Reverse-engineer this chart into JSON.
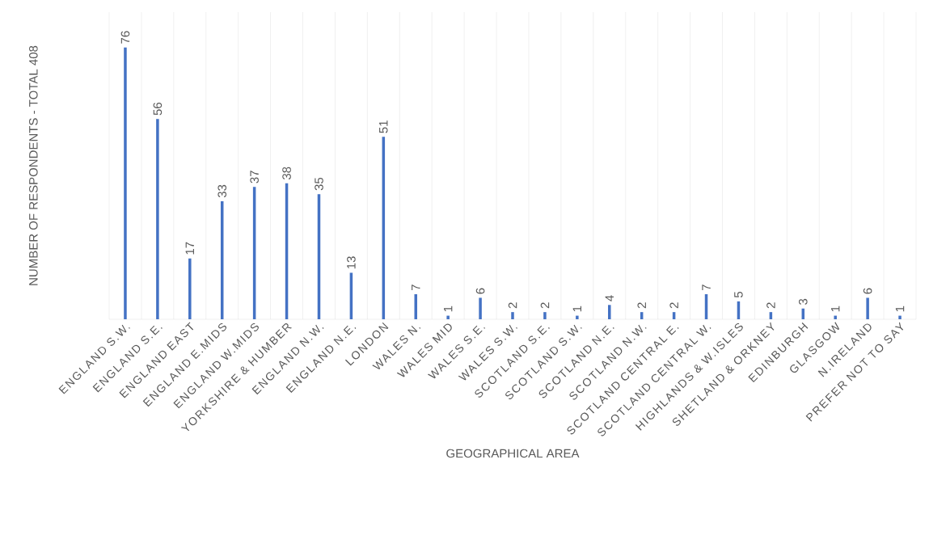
{
  "chart_data": {
    "type": "bar",
    "xlabel": "GEOGRAPHICAL AREA",
    "ylabel": "NUMBER OF RESPONDENTS - TOTAL 408",
    "categories": [
      "ENGLAND S.W.",
      "ENGLAND S.E.",
      "ENGLAND EAST",
      "ENGLAND E.MIDS",
      "ENGLAND W.MIDS",
      "YORKSHIRE & HUMBER",
      "ENGLAND N.W.",
      "ENGLAND N.E.",
      "LONDON",
      "WALES N.",
      "WALES MID",
      "WALES S.E.",
      "WALES S.W.",
      "SCOTLAND S.E.",
      "SCOTLAND S.W.",
      "SCOTLAND N.E.",
      "SCOTLAND N.W.",
      "SCOTLAND CENTRAL E.",
      "SCOTLAND CENTRAL W.",
      "HIGHLANDS & W.ISLES",
      "SHETLAND & ORKNEY",
      "EDINBURGH",
      "GLASGOW",
      "N.IRELAND",
      "PREFER NOT TO SAY"
    ],
    "values": [
      76,
      56,
      17,
      33,
      37,
      38,
      35,
      13,
      51,
      7,
      1,
      6,
      2,
      2,
      1,
      4,
      2,
      2,
      7,
      5,
      2,
      3,
      1,
      6,
      1
    ],
    "color": "#4472c4",
    "data_labels": true,
    "grid": "x",
    "tick_labels": "x"
  }
}
